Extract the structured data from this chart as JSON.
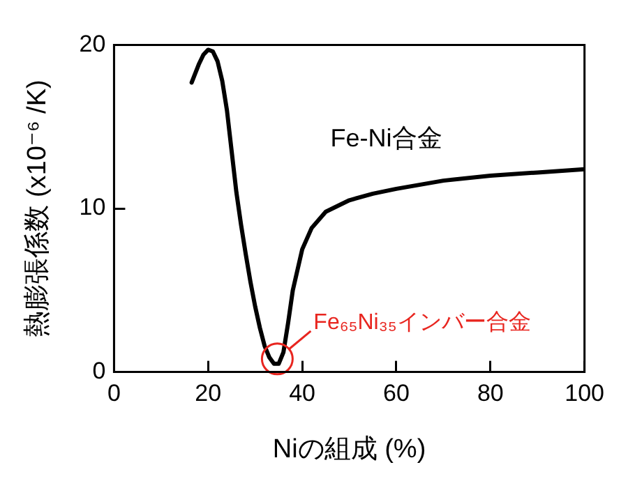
{
  "chart_data": {
    "type": "line",
    "xlabel": "Niの組成 (%)",
    "ylabel": "熱膨張係数 (x10⁻⁶ /K)",
    "x": [
      16.5,
      18,
      19,
      20,
      21,
      22,
      23,
      24,
      25,
      26,
      27,
      28,
      29,
      30,
      31,
      32,
      33,
      34,
      35,
      36,
      37,
      38,
      40,
      42,
      45,
      50,
      55,
      60,
      70,
      80,
      90,
      100
    ],
    "series": [
      {
        "color": "#000000",
        "values": [
          17.7,
          18.8,
          19.4,
          19.7,
          19.6,
          19.0,
          17.8,
          16.0,
          13.5,
          11.0,
          9.0,
          7.2,
          5.5,
          4.0,
          2.7,
          1.6,
          0.9,
          0.5,
          0.5,
          1.2,
          3.0,
          5.0,
          7.5,
          8.8,
          9.8,
          10.5,
          10.9,
          11.2,
          11.7,
          12.0,
          12.2,
          12.4
        ]
      }
    ],
    "xlim": [
      0,
      100
    ],
    "xticks": [
      0,
      20,
      40,
      60,
      80,
      100
    ],
    "ylim": [
      0,
      20
    ],
    "yticks": [
      0,
      10,
      20
    ],
    "grid": false,
    "legend": false,
    "marker": "none",
    "line_style": "solid",
    "annotations": [
      "Fe-Ni合金",
      {
        "text": "Fe₆₅Ni₃₅インバー合金",
        "x": 34.7,
        "y": 0.8
      }
    ]
  }
}
